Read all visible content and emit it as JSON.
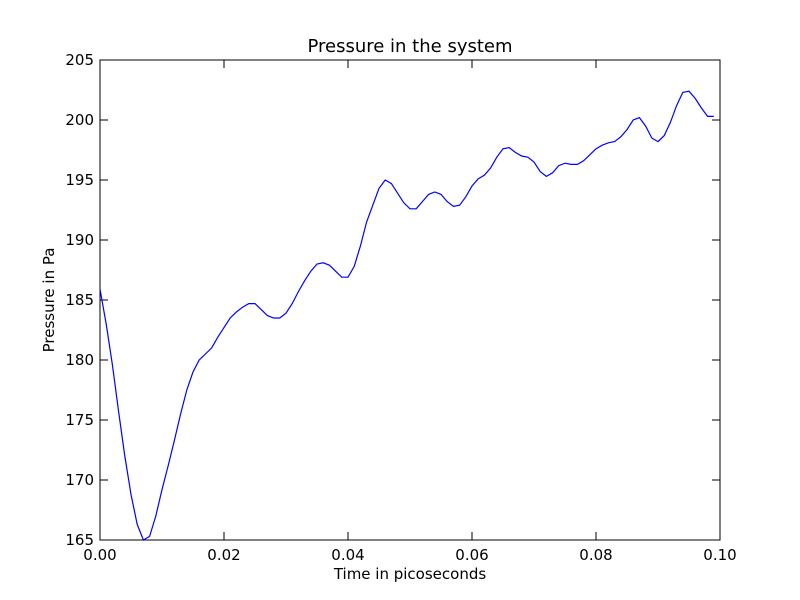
{
  "chart_data": {
    "type": "line",
    "title": "Pressure in the system",
    "xlabel": "Time in picoseconds",
    "ylabel": "Pressure in Pa",
    "xlim": [
      0.0,
      0.1
    ],
    "ylim": [
      165,
      205
    ],
    "xticks": [
      "0.00",
      "0.02",
      "0.04",
      "0.06",
      "0.08",
      "0.10"
    ],
    "yticks": [
      "165",
      "170",
      "175",
      "180",
      "185",
      "190",
      "195",
      "200",
      "205"
    ],
    "grid": false,
    "series": [
      {
        "color": "#0000ff",
        "x": [
          0.0,
          0.001,
          0.002,
          0.003,
          0.004,
          0.005,
          0.006,
          0.007,
          0.008,
          0.009,
          0.01,
          0.011,
          0.012,
          0.013,
          0.014,
          0.015,
          0.016,
          0.017,
          0.018,
          0.019,
          0.02,
          0.021,
          0.022,
          0.023,
          0.024,
          0.025,
          0.026,
          0.027,
          0.028,
          0.029,
          0.03,
          0.031,
          0.032,
          0.033,
          0.034,
          0.035,
          0.036,
          0.037,
          0.038,
          0.039,
          0.04,
          0.041,
          0.042,
          0.043,
          0.044,
          0.045,
          0.046,
          0.047,
          0.048,
          0.049,
          0.05,
          0.051,
          0.052,
          0.053,
          0.054,
          0.055,
          0.056,
          0.057,
          0.058,
          0.059,
          0.06,
          0.061,
          0.062,
          0.063,
          0.064,
          0.065,
          0.066,
          0.067,
          0.068,
          0.069,
          0.07,
          0.071,
          0.072,
          0.073,
          0.074,
          0.075,
          0.076,
          0.077,
          0.078,
          0.079,
          0.08,
          0.081,
          0.082,
          0.083,
          0.084,
          0.085,
          0.086,
          0.087,
          0.088,
          0.089,
          0.09,
          0.091,
          0.092,
          0.093,
          0.094,
          0.095,
          0.096,
          0.097,
          0.098,
          0.099
        ],
        "y": [
          185.9,
          183.0,
          179.6,
          175.7,
          172.0,
          168.8,
          166.3,
          165.0,
          165.3,
          167.0,
          169.2,
          171.2,
          173.3,
          175.5,
          177.5,
          179.0,
          180.0,
          180.5,
          181.0,
          181.9,
          182.7,
          183.5,
          184.0,
          184.4,
          184.7,
          184.7,
          184.2,
          183.7,
          183.5,
          183.5,
          183.9,
          184.7,
          185.7,
          186.6,
          187.4,
          188.0,
          188.1,
          187.9,
          187.4,
          186.9,
          186.9,
          187.8,
          189.5,
          191.5,
          192.9,
          194.3,
          195.0,
          194.7,
          193.9,
          193.1,
          192.6,
          192.6,
          193.2,
          193.8,
          194.0,
          193.8,
          193.2,
          192.8,
          192.9,
          193.6,
          194.5,
          195.1,
          195.4,
          196.0,
          196.9,
          197.6,
          197.7,
          197.3,
          197.0,
          196.9,
          196.5,
          195.7,
          195.3,
          195.6,
          196.2,
          196.4,
          196.3,
          196.3,
          196.6,
          197.1,
          197.6,
          197.9,
          198.1,
          198.2,
          198.6,
          199.2,
          200.0,
          200.2,
          199.5,
          198.5,
          198.2,
          198.7,
          199.8,
          201.2,
          202.3,
          202.4,
          201.8,
          201.0,
          200.3,
          200.3
        ]
      }
    ]
  }
}
